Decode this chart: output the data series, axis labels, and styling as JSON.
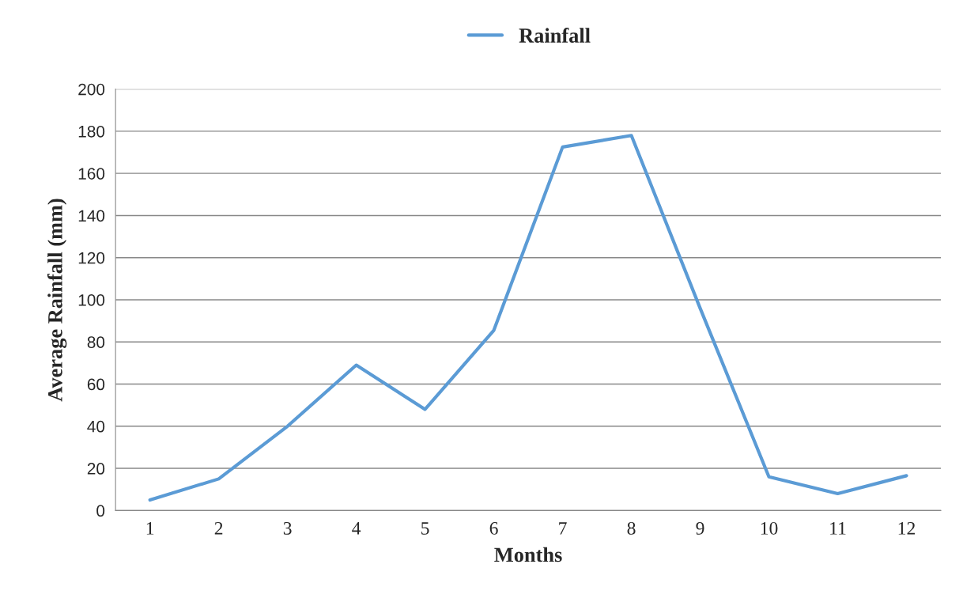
{
  "chart_data": {
    "type": "line",
    "xlabel": "Months",
    "ylabel": "Average Rainfall (mm)",
    "categories": [
      "1",
      "2",
      "3",
      "4",
      "5",
      "6",
      "7",
      "8",
      "9",
      "10",
      "11",
      "12"
    ],
    "series": [
      {
        "name": "Rainfall",
        "color": "#5b9bd5",
        "values": [
          5,
          15,
          40,
          69,
          48,
          85.5,
          172.5,
          178,
          96,
          16,
          8,
          16.5
        ]
      }
    ],
    "ylim": [
      0,
      200
    ],
    "yticks": [
      0,
      20,
      40,
      60,
      80,
      100,
      120,
      140,
      160,
      180,
      200
    ],
    "grid": "y",
    "legend": "top",
    "marker": "none",
    "line_style": "solid"
  }
}
